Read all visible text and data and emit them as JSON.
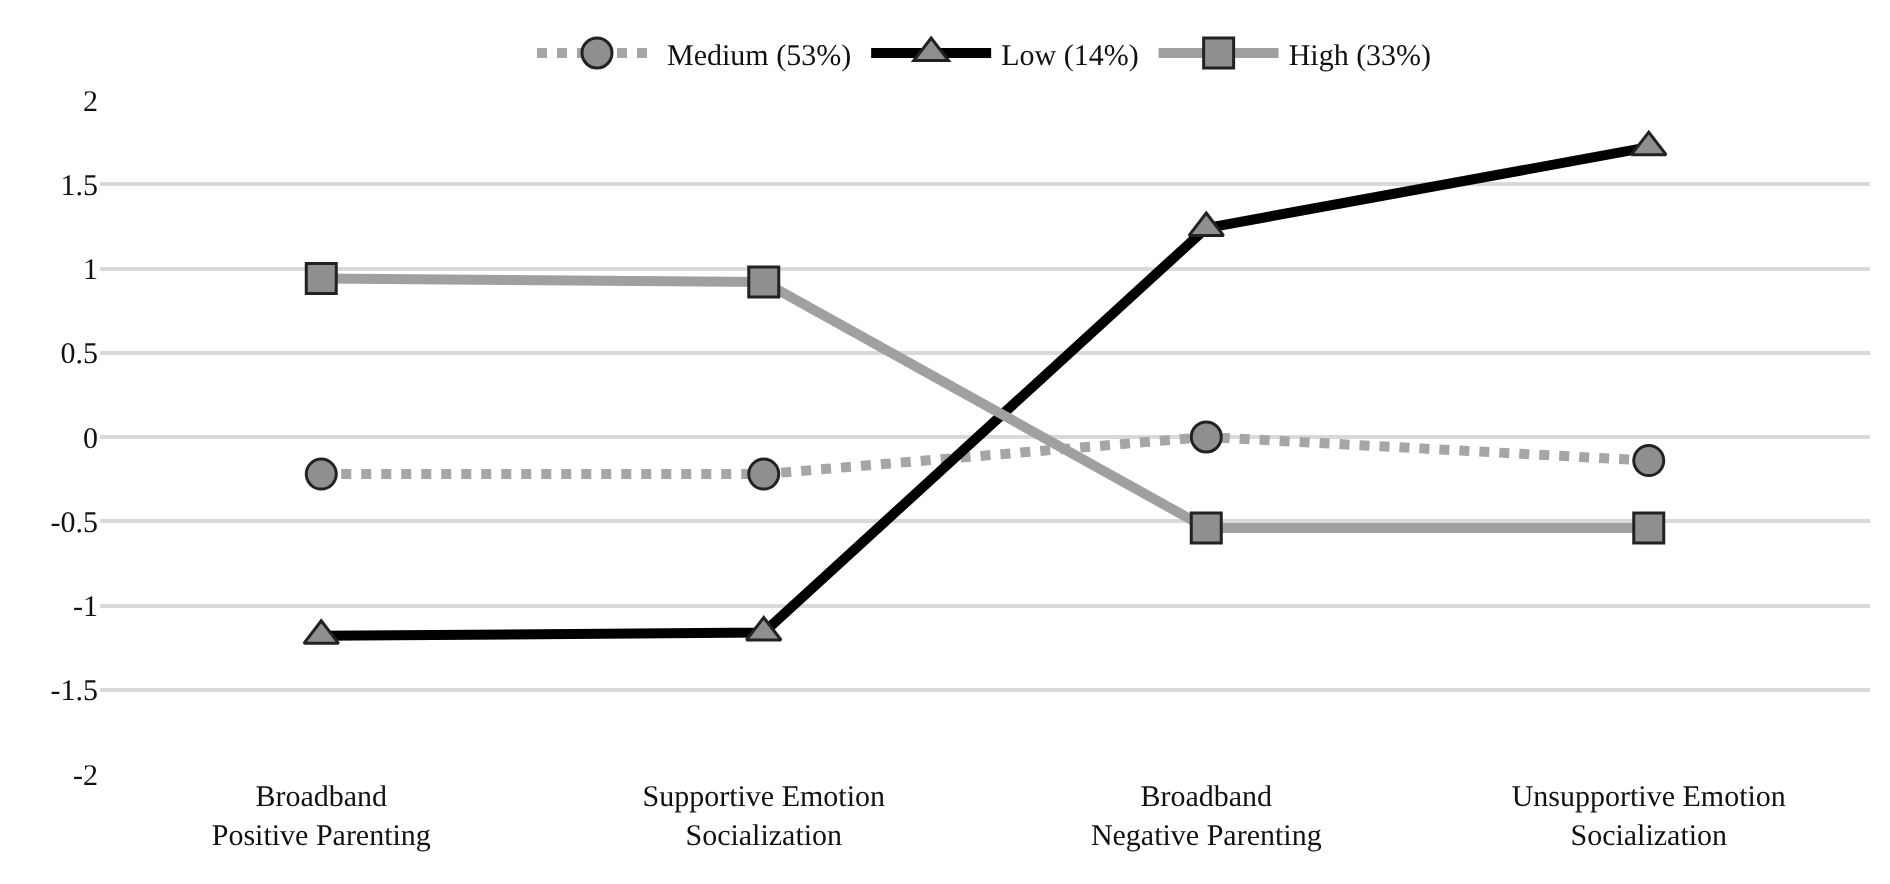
{
  "chart_data": {
    "type": "line",
    "categories": [
      "Broadband\nPositive Parenting",
      "Supportive Emotion\nSocialization",
      "Broadband\nNegative Parenting",
      "Unsupportive Emotion\nSocialization"
    ],
    "series": [
      {
        "name": "Medium (53%)",
        "color": "#a6a6a6",
        "line_style": "dotted",
        "marker": "circle",
        "values": [
          -0.22,
          -0.22,
          0.0,
          -0.14
        ]
      },
      {
        "name": "Low (14%)",
        "color": "#000000",
        "line_style": "solid",
        "marker": "triangle",
        "values": [
          -1.18,
          -1.16,
          1.24,
          1.72
        ]
      },
      {
        "name": "High (33%)",
        "color": "#a0a0a0",
        "line_style": "solid",
        "marker": "square",
        "values": [
          0.94,
          0.92,
          -0.54,
          -0.54
        ]
      }
    ],
    "ylim": [
      -2,
      2
    ],
    "yticks": [
      -2,
      -1.5,
      -1,
      -0.5,
      0,
      0.5,
      1,
      1.5,
      2
    ],
    "grid": "y",
    "legend": "top"
  }
}
